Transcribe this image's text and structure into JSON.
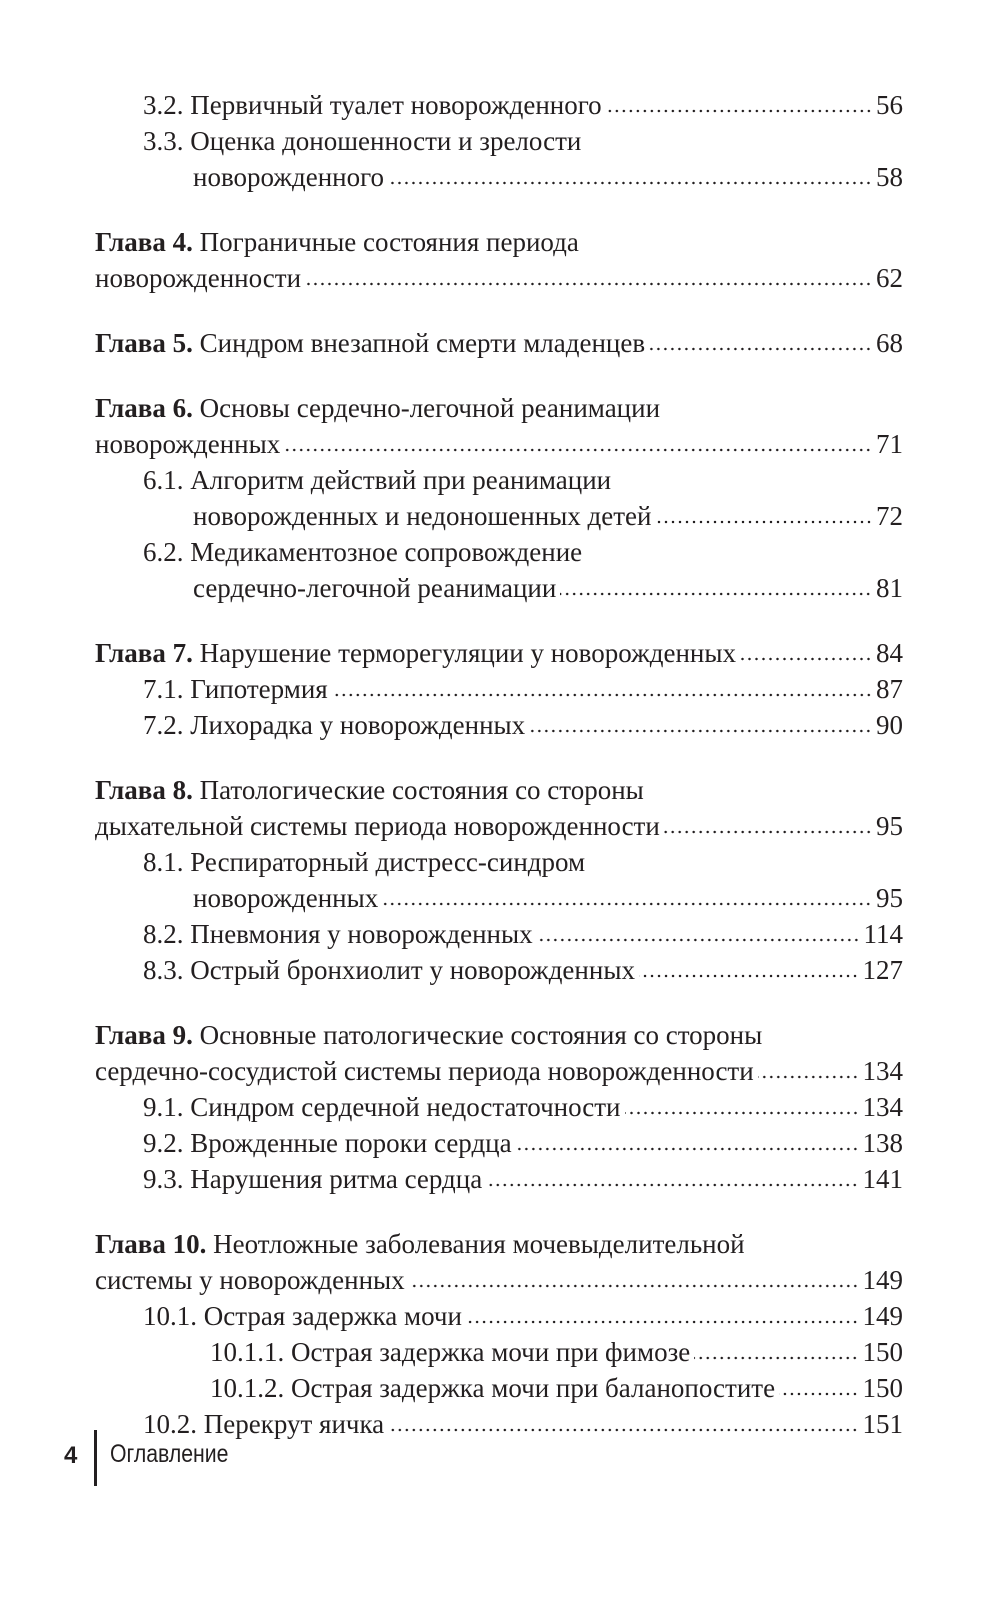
{
  "toc": [
    {
      "entries": [
        {
          "level": 1,
          "number": "3.2.",
          "lines": [
            "Первичный туалет новорожденного"
          ],
          "page": "56"
        },
        {
          "level": 1,
          "number": "3.3.",
          "lines": [
            "Оценка доношенности и зрелости",
            "новорожденного"
          ],
          "page": "58"
        }
      ]
    },
    {
      "entries": [
        {
          "level": 0,
          "number": "Глава 4.",
          "lines": [
            "Пограничные состояния периода",
            "новорожденности"
          ],
          "page": "62"
        }
      ]
    },
    {
      "entries": [
        {
          "level": 0,
          "number": "Глава 5.",
          "lines": [
            "Синдром внезапной смерти младенцев"
          ],
          "page": "68"
        }
      ]
    },
    {
      "entries": [
        {
          "level": 0,
          "number": "Глава 6.",
          "lines": [
            "Основы сердечно-легочной реанимации",
            "новорожденных"
          ],
          "page": "71"
        },
        {
          "level": 1,
          "number": "6.1.",
          "lines": [
            "Алгоритм действий при реанимации",
            "новорожденных и недоношенных детей"
          ],
          "page": "72"
        },
        {
          "level": 1,
          "number": "6.2.",
          "lines": [
            "Медикаментозное сопровождение",
            "сердечно-легочной реанимации"
          ],
          "page": "81"
        }
      ]
    },
    {
      "entries": [
        {
          "level": 0,
          "number": "Глава 7.",
          "lines": [
            "Нарушение терморегуляции у новорожденных"
          ],
          "page": "84"
        },
        {
          "level": 1,
          "number": "7.1.",
          "lines": [
            "Гипотермия"
          ],
          "page": "87"
        },
        {
          "level": 1,
          "number": "7.2.",
          "lines": [
            "Лихорадка у новорожденных"
          ],
          "page": "90"
        }
      ]
    },
    {
      "entries": [
        {
          "level": 0,
          "number": "Глава 8.",
          "lines": [
            "Патологические состояния со стороны",
            "дыхательной системы периода новорожденности"
          ],
          "page": "95"
        },
        {
          "level": 1,
          "number": "8.1.",
          "lines": [
            "Респираторный дистресс-синдром",
            "новорожденных"
          ],
          "page": "95"
        },
        {
          "level": 1,
          "number": "8.2.",
          "lines": [
            "Пневмония у новорожденных"
          ],
          "page": "114"
        },
        {
          "level": 1,
          "number": "8.3.",
          "lines": [
            "Острый бронхиолит у новорожденных"
          ],
          "page": "127"
        }
      ]
    },
    {
      "entries": [
        {
          "level": 0,
          "number": "Глава 9.",
          "lines": [
            "Основные патологические состояния со стороны",
            "сердечно-сосудистой системы периода новорожденности"
          ],
          "page": "134"
        },
        {
          "level": 1,
          "number": "9.1.",
          "lines": [
            "Синдром сердечной недостаточности"
          ],
          "page": "134"
        },
        {
          "level": 1,
          "number": "9.2.",
          "lines": [
            "Врожденные пороки сердца"
          ],
          "page": "138"
        },
        {
          "level": 1,
          "number": "9.3.",
          "lines": [
            "Нарушения ритма сердца"
          ],
          "page": "141"
        }
      ]
    },
    {
      "entries": [
        {
          "level": 0,
          "number": "Глава 10.",
          "lines": [
            "Неотложные заболевания мочевыделительной",
            "системы у новорожденных"
          ],
          "page": "149"
        },
        {
          "level": 1,
          "number": "10.1.",
          "lines": [
            "Острая задержка мочи"
          ],
          "page": "149"
        },
        {
          "level": 2,
          "number": "10.1.1.",
          "lines": [
            "Острая задержка мочи при фимозе"
          ],
          "page": "150"
        },
        {
          "level": 2,
          "number": "10.1.2.",
          "lines": [
            "Острая задержка мочи при баланопостите"
          ],
          "page": "150"
        },
        {
          "level": 1,
          "number": "10.2.",
          "lines": [
            "Перекрут яичка"
          ],
          "page": "151"
        }
      ]
    }
  ],
  "footer": {
    "page_number": "4",
    "section_title": "Оглавление"
  }
}
